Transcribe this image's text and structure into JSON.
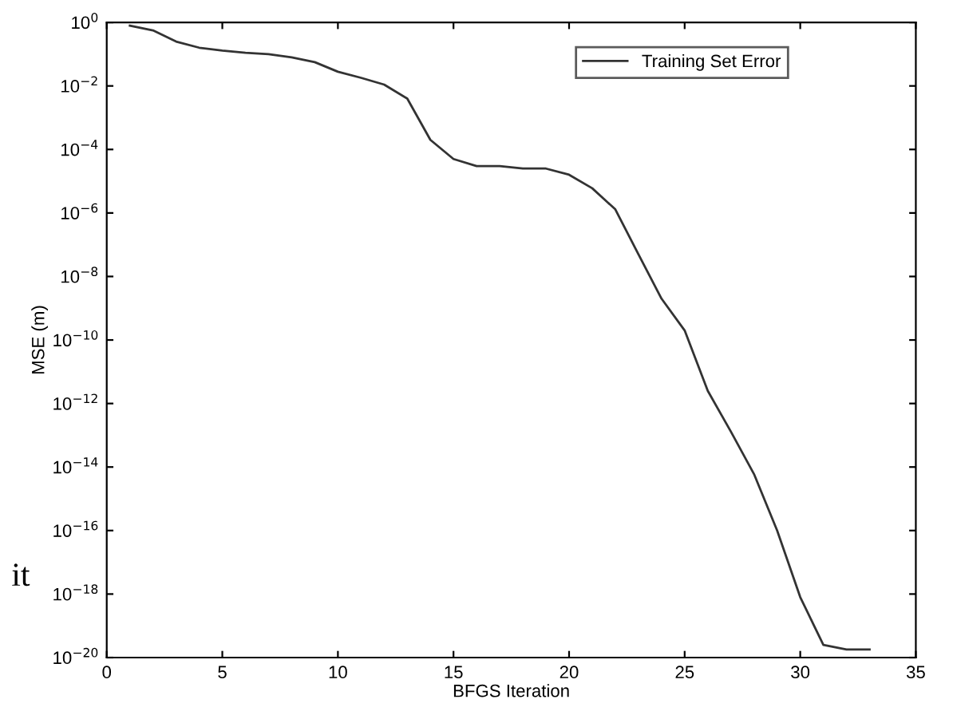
{
  "chart_data": {
    "type": "line",
    "xlabel": "BFGS Iteration",
    "ylabel": "MSE (m)",
    "x": [
      1,
      2,
      3,
      4,
      5,
      6,
      7,
      8,
      9,
      10,
      11,
      12,
      13,
      14,
      15,
      16,
      17,
      18,
      19,
      20,
      21,
      22,
      23,
      24,
      25,
      26,
      27,
      28,
      29,
      30,
      31,
      32,
      33
    ],
    "series": [
      {
        "name": "Training Set Error",
        "color": "#333333",
        "values": [
          0.79,
          0.56,
          0.25,
          0.16,
          0.13,
          0.11,
          0.1,
          0.079,
          0.056,
          0.028,
          0.018,
          0.011,
          0.004,
          0.0002,
          5e-05,
          3e-05,
          3e-05,
          2.5e-05,
          2.5e-05,
          1.6e-05,
          6e-06,
          1.3e-06,
          5e-08,
          2e-09,
          2e-10,
          2.5e-12,
          1.3e-13,
          6e-15,
          1e-16,
          8e-19,
          2.5e-20,
          1.8e-20,
          1.8e-20
        ]
      }
    ],
    "log": "y",
    "xlim": [
      0,
      35
    ],
    "xticks": [
      0,
      5,
      10,
      15,
      20,
      25,
      30,
      35
    ],
    "ylim": [
      1e-20,
      1
    ],
    "yticks": [
      {
        "value": 1,
        "label": "10$^{0}$"
      },
      {
        "value": 0.01,
        "label": "10$^{−2}$"
      },
      {
        "value": 0.0001,
        "label": "10$^{−4}$"
      },
      {
        "value": 1e-06,
        "label": "10$^{−6}$"
      },
      {
        "value": 1e-08,
        "label": "10$^{−8}$"
      },
      {
        "value": 1e-10,
        "label": "10$^{−10}$"
      },
      {
        "value": 1e-12,
        "label": "10$^{−12}$"
      },
      {
        "value": 1e-14,
        "label": "10$^{−14}$"
      },
      {
        "value": 1e-16,
        "label": "10$^{−16}$"
      },
      {
        "value": 1e-18,
        "label": "10$^{−18}$"
      },
      {
        "value": 1e-20,
        "label": "10$^{−20}$"
      }
    ],
    "grid": false,
    "legend": "top right",
    "line_style": "solid",
    "marker": "none",
    "annotations": [
      "it"
    ]
  }
}
